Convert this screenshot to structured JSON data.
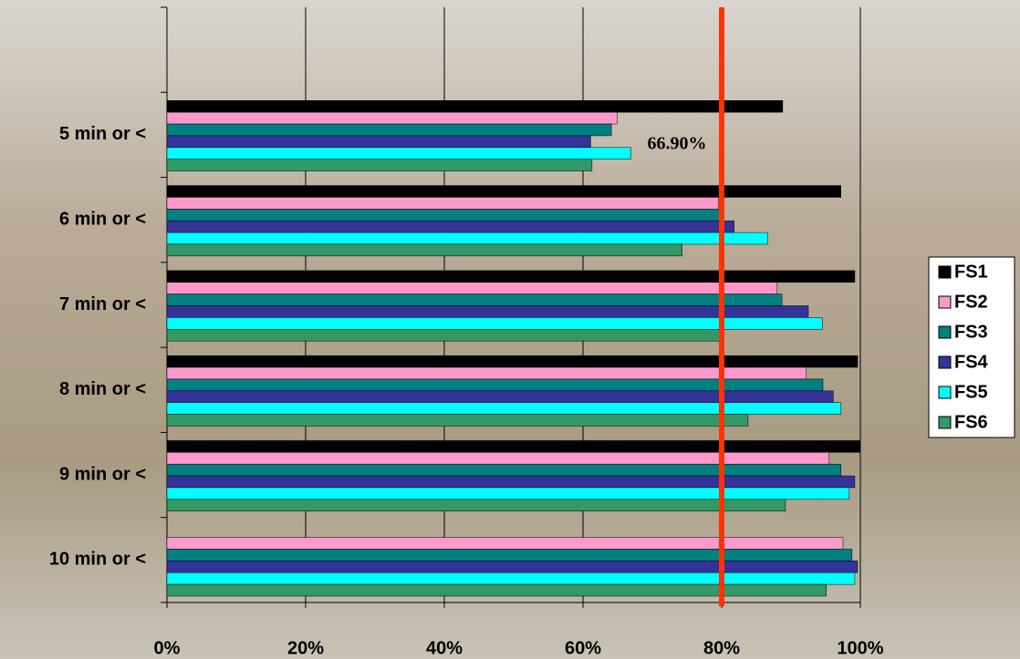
{
  "chart_data": {
    "type": "bar",
    "orientation": "horizontal",
    "categories": [
      null,
      "5 min or <",
      "6 min or <",
      "7 min or <",
      "8 min or <",
      "9 min or <",
      "10 min or <"
    ],
    "series": [
      {
        "name": "FS1",
        "color": "#000000",
        "values": [
          null,
          88.8,
          97.2,
          99.2,
          99.6,
          100,
          null
        ]
      },
      {
        "name": "FS2",
        "color": "#ff99cc",
        "values": [
          null,
          64.9,
          79.5,
          88.0,
          92.2,
          95.5,
          97.5
        ]
      },
      {
        "name": "FS3",
        "color": "#008080",
        "values": [
          null,
          64.1,
          79.7,
          88.7,
          94.6,
          97.2,
          98.8
        ]
      },
      {
        "name": "FS4",
        "color": "#333399",
        "values": [
          null,
          61.1,
          81.8,
          92.5,
          96.1,
          99.2,
          99.6
        ]
      },
      {
        "name": "FS5",
        "color": "#00ffff",
        "values": [
          null,
          66.9,
          86.6,
          94.5,
          97.2,
          98.4,
          99.2
        ],
        "value_labels": [
          null,
          "66.90%",
          null,
          null,
          null,
          null,
          null
        ]
      },
      {
        "name": "FS6",
        "color": "#339966",
        "values": [
          null,
          61.3,
          74.3,
          79.9,
          83.8,
          89.2,
          95.1
        ]
      }
    ],
    "xlim": [
      0,
      100
    ],
    "xticks": [
      {
        "value": 0,
        "label": "0%"
      },
      {
        "value": 20,
        "label": "20%"
      },
      {
        "value": 40,
        "label": "40%"
      },
      {
        "value": 60,
        "label": "60%"
      },
      {
        "value": 80,
        "label": "80%"
      },
      {
        "value": 100,
        "label": "100%"
      }
    ],
    "grid": true,
    "legend": "right",
    "reference_line": {
      "value": 80,
      "color": "#ff3300"
    }
  }
}
